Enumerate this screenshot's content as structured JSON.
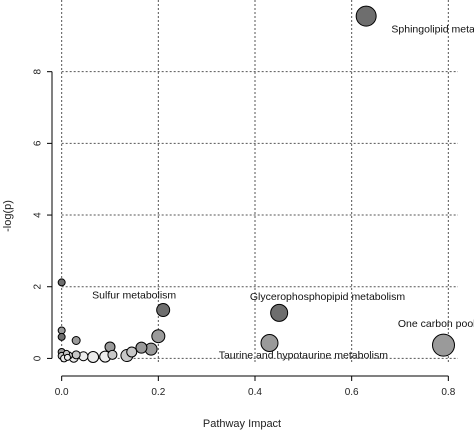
{
  "chart_data": {
    "type": "scatter",
    "title": "",
    "xlabel": "Pathway Impact",
    "ylabel": "-log(p)",
    "xlim": [
      -0.02,
      0.82
    ],
    "ylim": [
      -0.1,
      10.0
    ],
    "x_ticks": [
      0.0,
      0.2,
      0.4,
      0.6,
      0.8
    ],
    "x_tick_labels": [
      "0.0",
      "0.2",
      "0.4",
      "0.6",
      "0.8"
    ],
    "y_ticks": [
      0,
      2,
      4,
      6,
      8
    ],
    "y_tick_labels": [
      "0",
      "2",
      "4",
      "6",
      "8"
    ],
    "grid": true,
    "legend": "none",
    "colors": {
      "dark": "#6e6e6e",
      "mid": "#9a9a9a",
      "light": "#c8c8c8",
      "pale": "#ececec",
      "edge": "#000000"
    },
    "points": [
      {
        "x": 0.63,
        "y": 9.55,
        "size": 10,
        "shade": "dark"
      },
      {
        "x": 0.21,
        "y": 1.35,
        "size": 6.5,
        "shade": "dark"
      },
      {
        "x": 0.45,
        "y": 1.27,
        "size": 8.5,
        "shade": "dark"
      },
      {
        "x": 0.79,
        "y": 0.37,
        "size": 11,
        "shade": "mid"
      },
      {
        "x": 0.43,
        "y": 0.43,
        "size": 8.5,
        "shade": "mid"
      },
      {
        "x": 0.2,
        "y": 0.62,
        "size": 6.5,
        "shade": "mid"
      },
      {
        "x": 0.185,
        "y": 0.26,
        "size": 6,
        "shade": "mid"
      },
      {
        "x": 0.165,
        "y": 0.3,
        "size": 5.5,
        "shade": "mid"
      },
      {
        "x": 0.145,
        "y": 0.18,
        "size": 5,
        "shade": "light"
      },
      {
        "x": 0.135,
        "y": 0.08,
        "size": 6,
        "shade": "light"
      },
      {
        "x": 0.1,
        "y": 0.32,
        "size": 5,
        "shade": "mid"
      },
      {
        "x": 0.105,
        "y": 0.1,
        "size": 4.5,
        "shade": "light"
      },
      {
        "x": 0.09,
        "y": 0.05,
        "size": 5.5,
        "shade": "pale"
      },
      {
        "x": 0.065,
        "y": 0.04,
        "size": 5.5,
        "shade": "pale"
      },
      {
        "x": 0.045,
        "y": 0.06,
        "size": 4.5,
        "shade": "pale"
      },
      {
        "x": 0.03,
        "y": 0.5,
        "size": 4,
        "shade": "mid"
      },
      {
        "x": 0.03,
        "y": 0.1,
        "size": 4,
        "shade": "light"
      },
      {
        "x": 0.025,
        "y": 0.02,
        "size": 4.5,
        "shade": "pale"
      },
      {
        "x": 0.015,
        "y": 0.08,
        "size": 3.5,
        "shade": "light"
      },
      {
        "x": 0.0,
        "y": 2.12,
        "size": 3.5,
        "shade": "dark"
      },
      {
        "x": 0.0,
        "y": 0.78,
        "size": 3.5,
        "shade": "mid"
      },
      {
        "x": 0.0,
        "y": 0.6,
        "size": 3.5,
        "shade": "dark"
      },
      {
        "x": 0.0,
        "y": 0.18,
        "size": 3.5,
        "shade": "mid"
      },
      {
        "x": 0.0,
        "y": 0.07,
        "size": 3.5,
        "shade": "light"
      },
      {
        "x": 0.005,
        "y": 0.0,
        "size": 3.5,
        "shade": "pale"
      },
      {
        "x": 0.01,
        "y": 0.14,
        "size": 3,
        "shade": "light"
      },
      {
        "x": 0.012,
        "y": 0.03,
        "size": 3,
        "shade": "pale"
      }
    ],
    "annotations": [
      {
        "text": "Sphingolipid metabolism",
        "x": 0.8,
        "y": 9.1,
        "anchor": "middle"
      },
      {
        "text": "Sulfur metabolism",
        "x": 0.15,
        "y": 1.67,
        "anchor": "middle"
      },
      {
        "text": "Glycerophosphopipid metabolism",
        "x": 0.55,
        "y": 1.63,
        "anchor": "middle"
      },
      {
        "text": "One carbon pool by floate",
        "x": 0.82,
        "y": 0.88,
        "anchor": "middle"
      },
      {
        "text": "Taurine and hypotaurine metabolism",
        "x": 0.5,
        "y": 0.0,
        "anchor": "middle"
      }
    ]
  }
}
